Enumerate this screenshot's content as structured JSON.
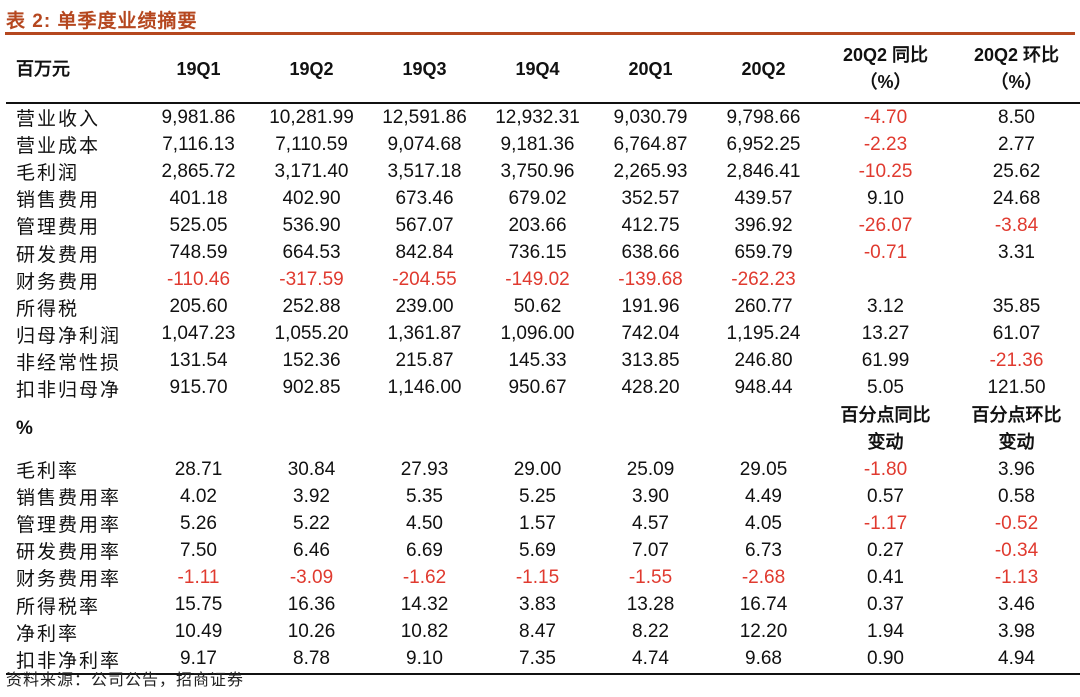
{
  "title": "表 2: 单季度业绩摘要",
  "source": "资料来源：公司公告，招商证券",
  "colors": {
    "accent": "#b5471f",
    "negative": "#e03a2f"
  },
  "header": {
    "unit": "百万元",
    "periods": [
      "19Q1",
      "19Q2",
      "19Q3",
      "19Q4",
      "20Q1",
      "20Q2"
    ],
    "yoy_line1": "20Q2 同比",
    "yoy_line2": "（%）",
    "qoq_line1": "20Q2 环比",
    "qoq_line2": "（%）"
  },
  "rows1": [
    {
      "label": "营业收入",
      "values": [
        "9,981.86",
        "10,281.99",
        "12,591.86",
        "12,932.31",
        "9,030.79",
        "9,798.66",
        "-4.70",
        "8.50"
      ]
    },
    {
      "label": "营业成本",
      "values": [
        "7,116.13",
        "7,110.59",
        "9,074.68",
        "9,181.36",
        "6,764.87",
        "6,952.25",
        "-2.23",
        "2.77"
      ]
    },
    {
      "label": "毛利润",
      "values": [
        "2,865.72",
        "3,171.40",
        "3,517.18",
        "3,750.96",
        "2,265.93",
        "2,846.41",
        "-10.25",
        "25.62"
      ]
    },
    {
      "label": "销售费用",
      "values": [
        "401.18",
        "402.90",
        "673.46",
        "679.02",
        "352.57",
        "439.57",
        "9.10",
        "24.68"
      ]
    },
    {
      "label": "管理费用",
      "values": [
        "525.05",
        "536.90",
        "567.07",
        "203.66",
        "412.75",
        "396.92",
        "-26.07",
        "-3.84"
      ]
    },
    {
      "label": "研发费用",
      "values": [
        "748.59",
        "664.53",
        "842.84",
        "736.15",
        "638.66",
        "659.79",
        "-0.71",
        "3.31"
      ]
    },
    {
      "label": "财务费用",
      "values": [
        "-110.46",
        "-317.59",
        "-204.55",
        "-149.02",
        "-139.68",
        "-262.23",
        "",
        ""
      ]
    },
    {
      "label": "所得税",
      "values": [
        "205.60",
        "252.88",
        "239.00",
        "50.62",
        "191.96",
        "260.77",
        "3.12",
        "35.85"
      ]
    },
    {
      "label": "归母净利润",
      "values": [
        "1,047.23",
        "1,055.20",
        "1,361.87",
        "1,096.00",
        "742.04",
        "1,195.24",
        "13.27",
        "61.07"
      ]
    },
    {
      "label": "非经常性损",
      "values": [
        "131.54",
        "152.36",
        "215.87",
        "145.33",
        "313.85",
        "246.80",
        "61.99",
        "-21.36"
      ]
    },
    {
      "label": "扣非归母净",
      "values": [
        "915.70",
        "902.85",
        "1,146.00",
        "950.67",
        "428.20",
        "948.44",
        "5.05",
        "121.50"
      ]
    }
  ],
  "section2": {
    "label": "%",
    "yoy_line1": "百分点同比",
    "yoy_line2": "变动",
    "qoq_line1": "百分点环比",
    "qoq_line2": "变动"
  },
  "rows2": [
    {
      "label": "毛利率",
      "values": [
        "28.71",
        "30.84",
        "27.93",
        "29.00",
        "25.09",
        "29.05",
        "-1.80",
        "3.96"
      ]
    },
    {
      "label": "销售费用率",
      "values": [
        "4.02",
        "3.92",
        "5.35",
        "5.25",
        "3.90",
        "4.49",
        "0.57",
        "0.58"
      ]
    },
    {
      "label": "管理费用率",
      "values": [
        "5.26",
        "5.22",
        "4.50",
        "1.57",
        "4.57",
        "4.05",
        "-1.17",
        "-0.52"
      ]
    },
    {
      "label": "研发费用率",
      "values": [
        "7.50",
        "6.46",
        "6.69",
        "5.69",
        "7.07",
        "6.73",
        "0.27",
        "-0.34"
      ]
    },
    {
      "label": "财务费用率",
      "values": [
        "-1.11",
        "-3.09",
        "-1.62",
        "-1.15",
        "-1.55",
        "-2.68",
        "0.41",
        "-1.13"
      ]
    },
    {
      "label": "所得税率",
      "values": [
        "15.75",
        "16.36",
        "14.32",
        "3.83",
        "13.28",
        "16.74",
        "0.37",
        "3.46"
      ]
    },
    {
      "label": "净利率",
      "values": [
        "10.49",
        "10.26",
        "10.82",
        "8.47",
        "8.22",
        "12.20",
        "1.94",
        "3.98"
      ]
    },
    {
      "label": "扣非净利率",
      "values": [
        "9.17",
        "8.78",
        "9.10",
        "7.35",
        "4.74",
        "9.68",
        "0.90",
        "4.94"
      ]
    }
  ]
}
